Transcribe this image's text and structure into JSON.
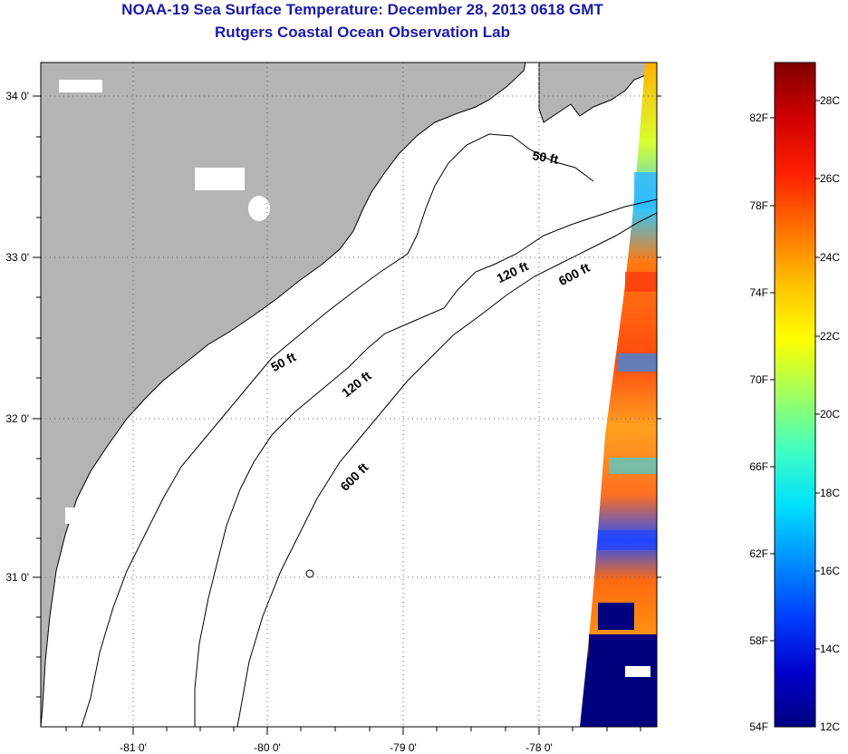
{
  "header": {
    "title": "NOAA-19 Sea Surface Temperature:  December 28, 2013 0618 GMT",
    "subtitle": "Rutgers Coastal Ocean Observation Lab"
  },
  "axes": {
    "latitude_labels": [
      "34 0'",
      "33 0'",
      "32 0'",
      "31 0'"
    ],
    "longitude_labels": [
      "-81 0'",
      "-80 0'",
      "-79 0'",
      "-78 0'"
    ]
  },
  "contours": {
    "labels": [
      "50 ft",
      "50 ft",
      "120 ft",
      "120 ft",
      "600 ft",
      "600 ft"
    ]
  },
  "colorbar": {
    "fahrenheit_labels": [
      "82F",
      "78F",
      "74F",
      "70F",
      "66F",
      "62F",
      "58F",
      "54F"
    ],
    "celsius_labels": [
      "28C",
      "26C",
      "24C",
      "22C",
      "20C",
      "18C",
      "16C",
      "14C",
      "12C"
    ],
    "stops": [
      "#000080",
      "#0000cd",
      "#0040ff",
      "#0090ff",
      "#00e0ff",
      "#40ffc0",
      "#a0ff60",
      "#ffff00",
      "#ffc000",
      "#ff7000",
      "#ff2000",
      "#d00000",
      "#800000"
    ]
  },
  "colors": {
    "land": "#b4b4b4",
    "title": "#1a1aa6",
    "sst_cold": "#00007f",
    "sst_warm": "#ff8c00"
  }
}
